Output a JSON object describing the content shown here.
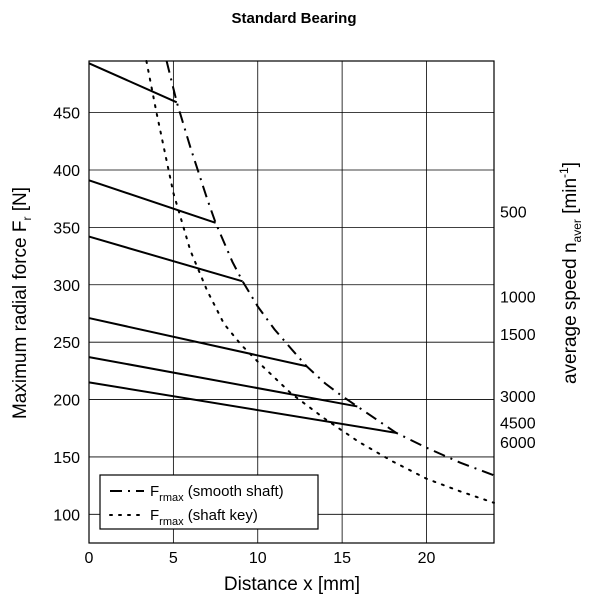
{
  "chart_data": {
    "type": "line",
    "title": "Standard Bearing",
    "xlabel": "Distance x [mm]",
    "ylabel": {
      "text": "Maximum radial force F",
      "sub": "r",
      "unit": " [N]"
    },
    "y2label": {
      "text": "average speed n",
      "sub": "aver",
      "unit_pre": " [min",
      "sup": "-1",
      "unit_post": "]"
    },
    "xlim": [
      0,
      24
    ],
    "ylim": [
      75,
      495
    ],
    "xticks": [
      0,
      5,
      10,
      15,
      20
    ],
    "yticks": [
      100,
      150,
      200,
      250,
      300,
      350,
      400,
      450
    ],
    "grid": true,
    "speed_labels": [
      {
        "label": "500",
        "y": 364
      },
      {
        "label": "1000",
        "y": 290
      },
      {
        "label": "1500",
        "y": 257
      },
      {
        "label": "3000",
        "y": 203
      },
      {
        "label": "4500",
        "y": 180
      },
      {
        "label": "6000",
        "y": 163
      }
    ],
    "speed_lines": [
      {
        "x": [
          0,
          5.2
        ],
        "y": [
          493,
          459
        ]
      },
      {
        "x": [
          0,
          7.5
        ],
        "y": [
          391,
          354
        ]
      },
      {
        "x": [
          0,
          9.1
        ],
        "y": [
          342,
          303
        ]
      },
      {
        "x": [
          0,
          12.9
        ],
        "y": [
          271,
          229
        ]
      },
      {
        "x": [
          0,
          15.9
        ],
        "y": [
          237,
          194
        ]
      },
      {
        "x": [
          0,
          18.2
        ],
        "y": [
          215,
          171
        ]
      }
    ],
    "series": [
      {
        "name": "smooth shaft",
        "style": "dash-dot",
        "x": [
          4.6,
          5.2,
          6.0,
          7.0,
          7.5,
          8.5,
          9.1,
          10.0,
          11.0,
          12.0,
          12.9,
          14.0,
          15.0,
          15.9,
          17.0,
          18.2,
          20.0,
          22.0,
          24.0
        ],
        "y": [
          495,
          459,
          420,
          375,
          354,
          320,
          303,
          281,
          261,
          244,
          229,
          214,
          203,
          194,
          183,
          171,
          158,
          145,
          134
        ]
      },
      {
        "name": "shaft key",
        "style": "dotted",
        "x": [
          3.4,
          4.0,
          5.0,
          6.0,
          7.0,
          8.0,
          9.0,
          10.0,
          12.0,
          14.0,
          16.0,
          18.0,
          20.0,
          22.0,
          24.0
        ],
        "y": [
          495,
          450,
          380,
          330,
          295,
          266,
          248,
          233,
          205,
          183,
          163,
          146,
          131,
          120,
          110
        ]
      }
    ],
    "legend": {
      "position": "bottom-left",
      "entries": [
        {
          "main": "F",
          "sub": "rmax",
          "text": " (smooth shaft)",
          "style": "dash-dot"
        },
        {
          "main": "F",
          "sub": "rmax",
          "text": " (shaft key)",
          "style": "dotted"
        }
      ]
    }
  }
}
